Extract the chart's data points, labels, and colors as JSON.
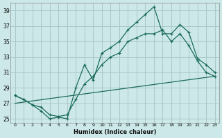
{
  "xlabel": "Humidex (Indice chaleur)",
  "background_color": "#cce8e8",
  "grid_color": "#aac8c8",
  "line_color": "#1a6b5a",
  "xlim": [
    -0.5,
    23.5
  ],
  "ylim": [
    24.5,
    40.0
  ],
  "xticks": [
    0,
    1,
    2,
    3,
    4,
    5,
    6,
    7,
    8,
    9,
    10,
    11,
    12,
    13,
    14,
    15,
    16,
    17,
    18,
    19,
    20,
    21,
    22,
    23
  ],
  "yticks": [
    25,
    27,
    29,
    31,
    33,
    35,
    37,
    39
  ],
  "line1_x": [
    0,
    1,
    2,
    3,
    4,
    5,
    6,
    7,
    8,
    9,
    10,
    11,
    12,
    13,
    14,
    15,
    16,
    17,
    18,
    19,
    20,
    21,
    22,
    23
  ],
  "line1_y": [
    28.0,
    27.5,
    26.8,
    26.0,
    25.0,
    25.2,
    25.0,
    29.0,
    32.0,
    30.0,
    33.5,
    34.2,
    35.0,
    36.5,
    37.5,
    38.5,
    39.5,
    36.0,
    36.0,
    37.2,
    36.2,
    32.8,
    32.0,
    31.0
  ],
  "line2_x": [
    0,
    1,
    2,
    3,
    4,
    5,
    6,
    7,
    8,
    9,
    10,
    11,
    12,
    13,
    14,
    15,
    16,
    17,
    18,
    19,
    20,
    21,
    22,
    23
  ],
  "line2_y": [
    28.0,
    27.5,
    26.8,
    26.5,
    25.5,
    25.3,
    25.5,
    27.5,
    29.5,
    30.5,
    32.0,
    33.0,
    33.5,
    35.0,
    35.5,
    36.0,
    36.0,
    36.5,
    35.0,
    36.0,
    34.5,
    32.5,
    31.0,
    30.5
  ],
  "line3_x": [
    0,
    23
  ],
  "line3_y": [
    27.0,
    30.5
  ]
}
